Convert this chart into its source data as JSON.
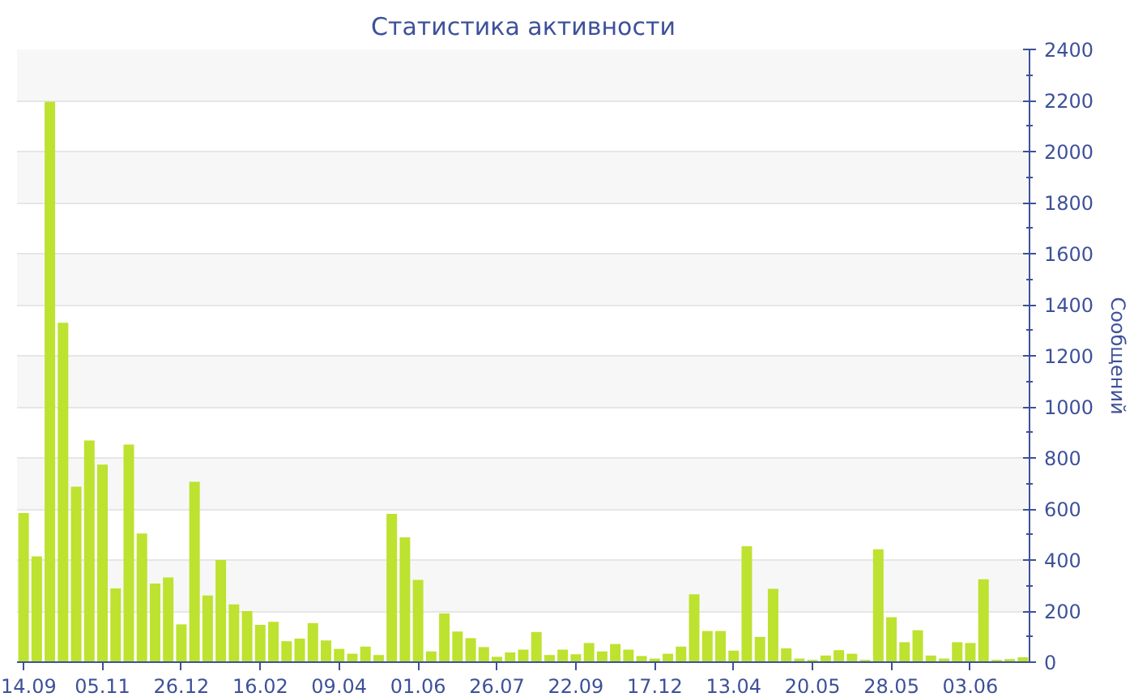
{
  "chart_data": {
    "type": "bar",
    "title": "Статистика активности",
    "ylabel": "Сообщений",
    "categories": [
      "14.09",
      null,
      null,
      null,
      null,
      null,
      "05.11",
      null,
      null,
      null,
      null,
      null,
      "26.12",
      null,
      null,
      null,
      null,
      null,
      "16.02",
      null,
      null,
      null,
      null,
      null,
      "09.04",
      null,
      null,
      null,
      null,
      null,
      "01.06",
      null,
      null,
      null,
      null,
      null,
      "26.07",
      null,
      null,
      null,
      null,
      null,
      "22.09",
      null,
      null,
      null,
      null,
      null,
      "17.12",
      null,
      null,
      null,
      null,
      null,
      "13.04",
      null,
      null,
      null,
      null,
      null,
      "20.05",
      null,
      null,
      null,
      null,
      null,
      "28.05",
      null,
      null,
      null,
      null,
      null,
      "03.06",
      null,
      null,
      null,
      null
    ],
    "values": [
      584,
      414,
      2195,
      1329,
      687,
      868,
      774,
      289,
      852,
      504,
      308,
      332,
      148,
      706,
      261,
      400,
      226,
      200,
      146,
      158,
      82,
      92,
      153,
      85,
      52,
      33,
      61,
      28,
      581,
      489,
      322,
      42,
      191,
      120,
      94,
      59,
      21,
      38,
      49,
      118,
      28,
      49,
      31,
      75,
      42,
      71,
      49,
      24,
      14,
      33,
      61,
      266,
      122,
      122,
      45,
      454,
      99,
      287,
      54,
      14,
      9,
      26,
      47,
      33,
      9,
      442,
      176,
      78,
      125,
      26,
      14,
      78,
      75,
      325,
      9,
      12,
      19
    ],
    "color": "#bde22f",
    "ylim": [
      0,
      2400
    ],
    "yticks": [
      0,
      200,
      400,
      600,
      800,
      1000,
      1200,
      1400,
      1600,
      1800,
      2000,
      2200,
      2400
    ],
    "grid": "y"
  }
}
